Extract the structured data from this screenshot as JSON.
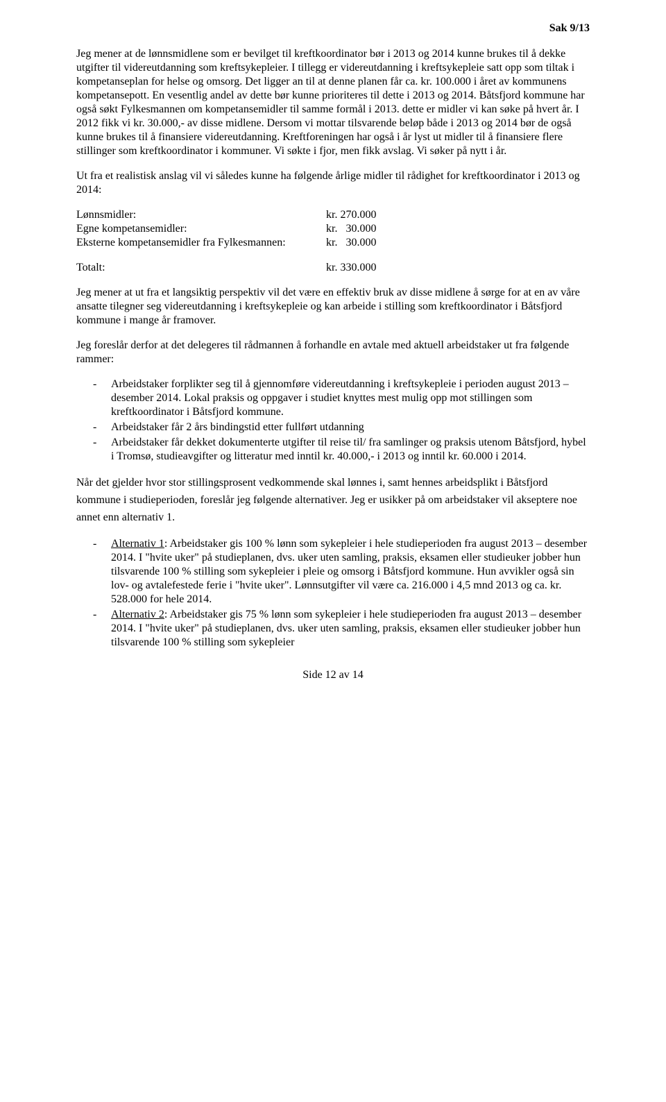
{
  "header": {
    "case_ref": "Sak 9/13"
  },
  "paragraphs": {
    "p1": "Jeg mener at de lønnsmidlene som er bevilget til kreftkoordinator bør i 2013 og 2014 kunne brukes til å dekke utgifter til videreutdanning som kreftsykepleier. I tillegg er videreutdanning i kreftsykepleie satt opp som tiltak i kompetanseplan for helse og omsorg. Det ligger an til at denne planen får ca. kr. 100.000 i året av kommunens kompetansepott. En vesentlig andel av dette bør kunne prioriteres til dette i 2013 og 2014. Båtsfjord kommune har også søkt Fylkesmannen om kompetansemidler til samme formål i 2013. dette er midler vi kan søke på hvert år. I 2012 fikk vi kr. 30.000,- av disse midlene. Dersom vi mottar tilsvarende beløp både i 2013 og 2014 bør de også kunne brukes til å finansiere videreutdanning. Kreftforeningen har også i år lyst ut midler til å finansiere flere stillinger som kreftkoordinator i kommuner. Vi søkte i fjor, men fikk avslag. Vi søker på nytt i år.",
    "p2": "Ut fra et realistisk anslag vil vi således kunne ha følgende årlige midler til rådighet for kreftkoordinator i 2013 og 2014:",
    "p3": "Jeg mener at ut fra et langsiktig perspektiv vil det være en effektiv bruk av disse midlene å sørge for at en av våre ansatte tilegner seg videreutdanning i kreftsykepleie og kan arbeide i stilling som kreftkoordinator i Båtsfjord kommune i mange år framover.",
    "p4": "Jeg foreslår derfor at det delegeres til rådmannen å forhandle en avtale med aktuell arbeidstaker ut fra følgende rammer:",
    "p5": "Når det gjelder hvor stor stillingsprosent vedkommende skal lønnes i, samt hennes arbeidsplikt i Båtsfjord kommune i studieperioden, foreslår jeg følgende alternativer. Jeg er usikker på om arbeidstaker vil akseptere noe annet enn alternativ 1."
  },
  "amounts": {
    "rows": [
      {
        "label": "Lønnsmidler:",
        "value": "kr. 270.000"
      },
      {
        "label": "Egne kompetansemidler:",
        "value": "kr.   30.000"
      },
      {
        "label": "Eksterne kompetansemidler fra Fylkesmannen:",
        "value": "kr.   30.000"
      }
    ],
    "total": {
      "label": "Totalt:",
      "value": "kr. 330.000"
    }
  },
  "framework_bullets": [
    "Arbeidstaker forplikter seg til å gjennomføre videreutdanning i kreftsykepleie i perioden august 2013 – desember 2014. Lokal praksis og oppgaver i studiet knyttes mest mulig opp mot stillingen som kreftkoordinator i Båtsfjord kommune.",
    "Arbeidstaker får 2 års bindingstid etter fullført utdanning",
    "Arbeidstaker får dekket dokumenterte utgifter til reise til/ fra samlinger og praksis utenom Båtsfjord, hybel i Tromsø, studieavgifter og litteratur med inntil kr. 40.000,- i 2013 og inntil kr. 60.000 i 2014."
  ],
  "alternatives": [
    {
      "title": "Alternativ 1",
      "text": ": Arbeidstaker gis 100 % lønn som sykepleier i hele studieperioden fra august 2013 – desember 2014. I \"hvite uker\" på studieplanen, dvs. uker uten samling, praksis, eksamen eller studieuker jobber hun tilsvarende 100 % stilling som sykepleier i pleie og omsorg i Båtsfjord kommune. Hun avvikler også sin lov- og avtalefestede ferie i \"hvite uker\". Lønnsutgifter vil være ca. 216.000 i 4,5 mnd 2013 og ca. kr. 528.000 for hele 2014."
    },
    {
      "title": "Alternativ 2",
      "text": ": Arbeidstaker gis 75 % lønn som sykepleier i hele studieperioden fra august 2013 – desember 2014. I \"hvite uker\" på studieplanen, dvs. uker uten samling, praksis, eksamen eller studieuker jobber hun tilsvarende 100 % stilling som sykepleier"
    }
  ],
  "footer": {
    "text": "Side 12 av 14"
  }
}
